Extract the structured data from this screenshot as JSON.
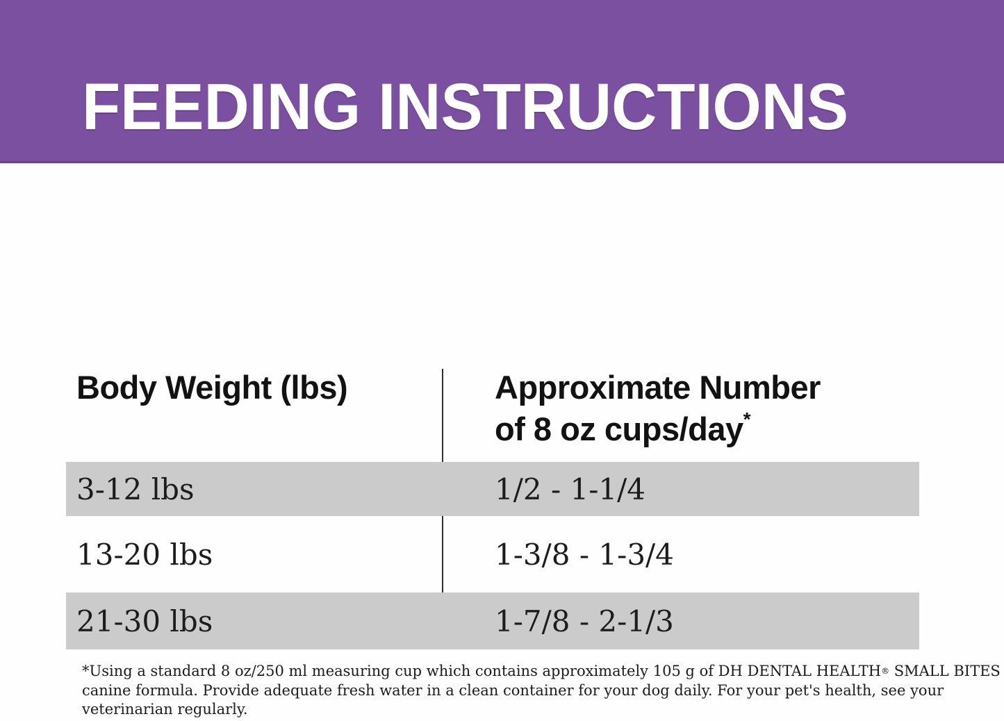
{
  "banner": {
    "title": "FEEDING INSTRUCTIONS",
    "background_color": "#7c50a1",
    "text_color": "#ffffff"
  },
  "table": {
    "columns": [
      {
        "label": "Body Weight (lbs)"
      },
      {
        "label": "Approximate Number of 8 oz cups/day",
        "superscript": "*"
      }
    ],
    "rows": [
      {
        "weight": "3-12 lbs",
        "cups": "1/2 - 1-1/4",
        "shaded": true
      },
      {
        "weight": "13-20 lbs",
        "cups": "1-3/8 - 1-3/4",
        "shaded": false
      },
      {
        "weight": "21-30 lbs",
        "cups": "1-7/8 - 2-1/3",
        "shaded": true
      }
    ],
    "shaded_row_color": "#cbcbcb",
    "divider_color": "#2b2b2b"
  },
  "footnote": {
    "line1_before": "*Using a standard 8 oz/250 ml measuring cup which contains approximately 105 g of DH DENTAL HEALTH",
    "registered_mark": "®",
    "line1_after": " SMALL BITES",
    "line2": "canine formula. Provide adequate fresh water in a clean container for your dog daily. For your pet's health, see your",
    "line3": "veterinarian regularly."
  }
}
